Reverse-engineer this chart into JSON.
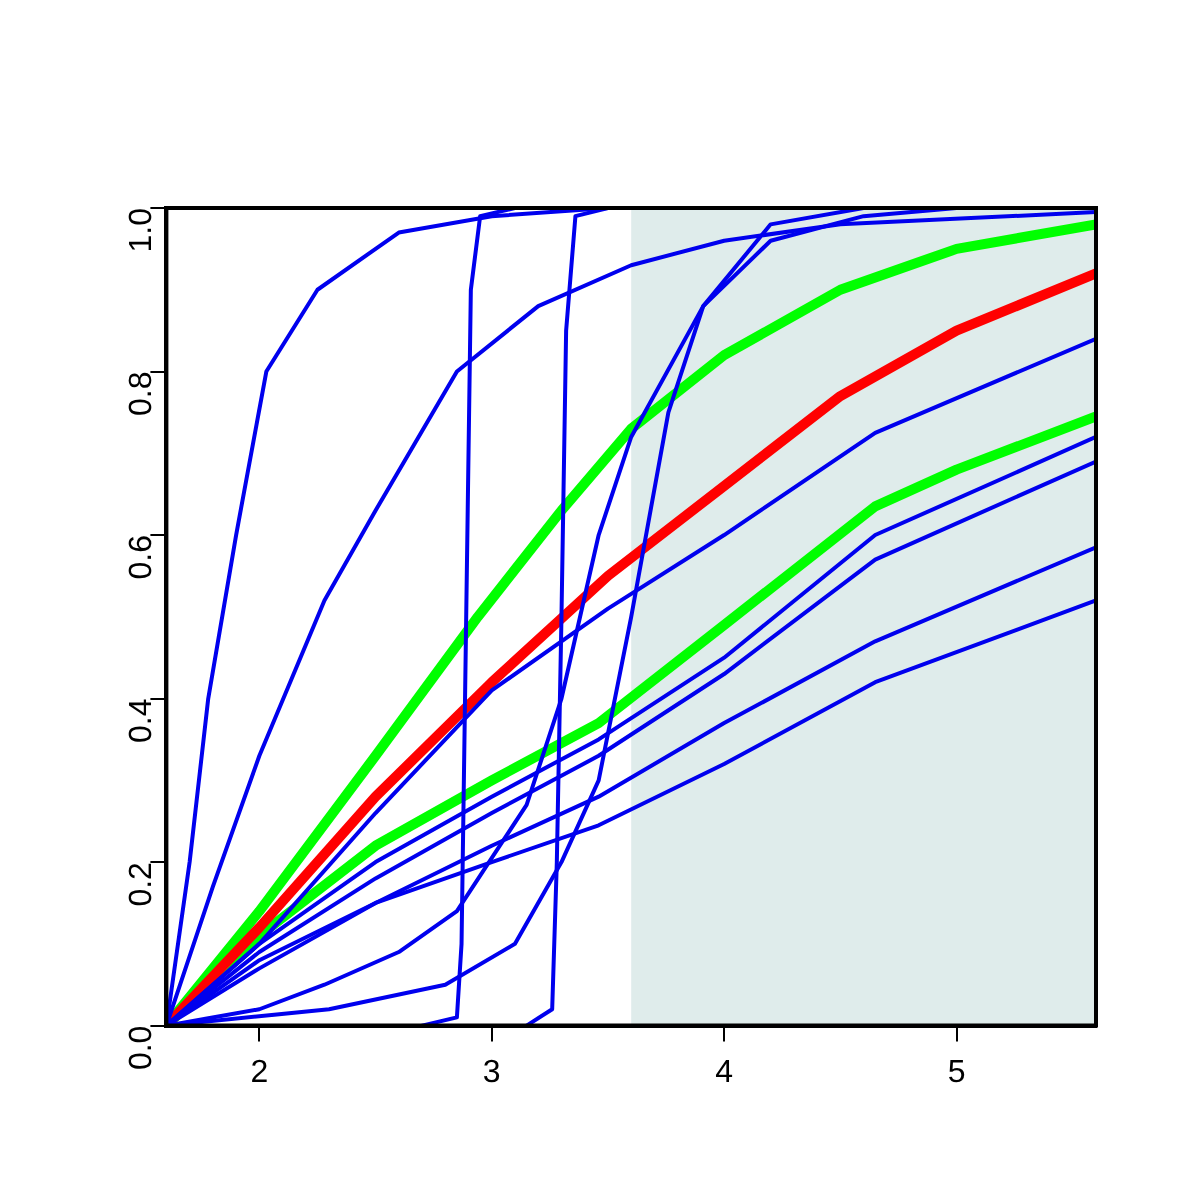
{
  "chart_data": {
    "type": "line",
    "xlim": [
      1.6,
      5.6
    ],
    "xticks": [
      2,
      3,
      4,
      5
    ],
    "ylim": [
      0,
      1
    ],
    "yticks": [
      {
        "value": 0,
        "label": "0.0"
      },
      {
        "value": 0.2,
        "label": "0.2"
      },
      {
        "value": 0.4,
        "label": "0.4"
      },
      {
        "value": 0.6,
        "label": "0.6"
      },
      {
        "value": 0.8,
        "label": "0.8"
      },
      {
        "value": 1,
        "label": "1.0"
      }
    ],
    "grid": false,
    "legend": false,
    "marker": "none",
    "line_style": "solid",
    "bands": [
      {
        "axis": "x",
        "from": 3.6,
        "to": 5.6,
        "color": "#dfeceb"
      }
    ],
    "series": [
      {
        "color": "#0000ee",
        "x": [
          1.6,
          1.7,
          1.78,
          1.9,
          2.03,
          2.25,
          2.6,
          3.0,
          3.5,
          5.6
        ],
        "values": [
          0,
          0.2,
          0.4,
          0.6,
          0.8,
          0.9,
          0.97,
          0.99,
          1,
          1
        ]
      },
      {
        "color": "#0000ee",
        "x": [
          1.6,
          1.8,
          2.0,
          2.28,
          2.5,
          2.85,
          3.2,
          3.6,
          4.0,
          4.5,
          5.6
        ],
        "values": [
          0,
          0.17,
          0.33,
          0.52,
          0.63,
          0.8,
          0.88,
          0.93,
          0.96,
          0.98,
          0.995
        ]
      },
      {
        "color": "#0000ee",
        "x": [
          2.7,
          2.85,
          2.87,
          2.89,
          2.91,
          2.95,
          3.1
        ],
        "values": [
          0,
          0.01,
          0.1,
          0.5,
          0.9,
          0.99,
          1
        ]
      },
      {
        "color": "#0000ee",
        "x": [
          3.15,
          3.26,
          3.28,
          3.3,
          3.32,
          3.36,
          3.5
        ],
        "values": [
          0,
          0.02,
          0.2,
          0.5,
          0.85,
          0.99,
          1
        ]
      },
      {
        "color": "#0000ee",
        "x": [
          1.6,
          2.3,
          2.8,
          3.1,
          3.3,
          3.46,
          3.6,
          3.76,
          3.91,
          4.2,
          4.6
        ],
        "values": [
          0,
          0.02,
          0.05,
          0.1,
          0.2,
          0.3,
          0.5,
          0.75,
          0.88,
          0.98,
          1
        ]
      },
      {
        "color": "#0000ee",
        "x": [
          1.6,
          2.0,
          2.28,
          2.6,
          2.85,
          3.15,
          3.3,
          3.46,
          3.6,
          3.91,
          4.2,
          4.6,
          5.0
        ],
        "values": [
          0,
          0.02,
          0.05,
          0.09,
          0.14,
          0.27,
          0.4,
          0.6,
          0.72,
          0.88,
          0.96,
          0.99,
          1
        ]
      },
      {
        "color": "#0000ee",
        "x": [
          1.6,
          2.0,
          2.5,
          3.0,
          3.5,
          4.0,
          4.65,
          5.6
        ],
        "values": [
          0,
          0.1,
          0.26,
          0.41,
          0.51,
          0.6,
          0.725,
          0.84
        ]
      },
      {
        "color": "#0000ee",
        "x": [
          1.6,
          2.0,
          2.5,
          3.0,
          3.46,
          4.0,
          4.65,
          5.6
        ],
        "values": [
          0,
          0.1,
          0.2,
          0.28,
          0.35,
          0.45,
          0.6,
          0.72
        ]
      },
      {
        "color": "#0000ee",
        "x": [
          1.6,
          2.0,
          2.5,
          3.0,
          3.46,
          4.0,
          4.65,
          5.6
        ],
        "values": [
          0,
          0.09,
          0.18,
          0.26,
          0.33,
          0.43,
          0.57,
          0.69
        ]
      },
      {
        "color": "#0000ee",
        "x": [
          1.6,
          2.0,
          2.5,
          3.0,
          3.46,
          4.0,
          4.65,
          5.6
        ],
        "values": [
          0,
          0.07,
          0.15,
          0.22,
          0.28,
          0.37,
          0.47,
          0.585
        ]
      },
      {
        "color": "#0000ee",
        "x": [
          1.6,
          2.0,
          2.5,
          3.0,
          3.46,
          4.0,
          4.65,
          5.6
        ],
        "values": [
          0,
          0.08,
          0.15,
          0.2,
          0.245,
          0.32,
          0.42,
          0.52
        ]
      },
      {
        "color": "#ff0000",
        "x": [
          1.6,
          2.0,
          2.5,
          3.0,
          3.5,
          4.0,
          4.5,
          5.0,
          5.6
        ],
        "values": [
          0,
          0.12,
          0.28,
          0.42,
          0.55,
          0.66,
          0.77,
          0.85,
          0.92
        ]
      },
      {
        "color": "#00ff00",
        "x": [
          1.6,
          2.0,
          2.5,
          2.94,
          3.3,
          3.6,
          4.0,
          4.5,
          5.0,
          5.6
        ],
        "values": [
          0,
          0.14,
          0.33,
          0.5,
          0.63,
          0.73,
          0.82,
          0.9,
          0.95,
          0.98
        ]
      },
      {
        "color": "#00ff00",
        "x": [
          1.6,
          2.0,
          2.5,
          3.0,
          3.46,
          4.0,
          4.65,
          5.0,
          5.6
        ],
        "values": [
          0,
          0.11,
          0.22,
          0.3,
          0.37,
          0.49,
          0.635,
          0.68,
          0.745
        ]
      }
    ]
  }
}
